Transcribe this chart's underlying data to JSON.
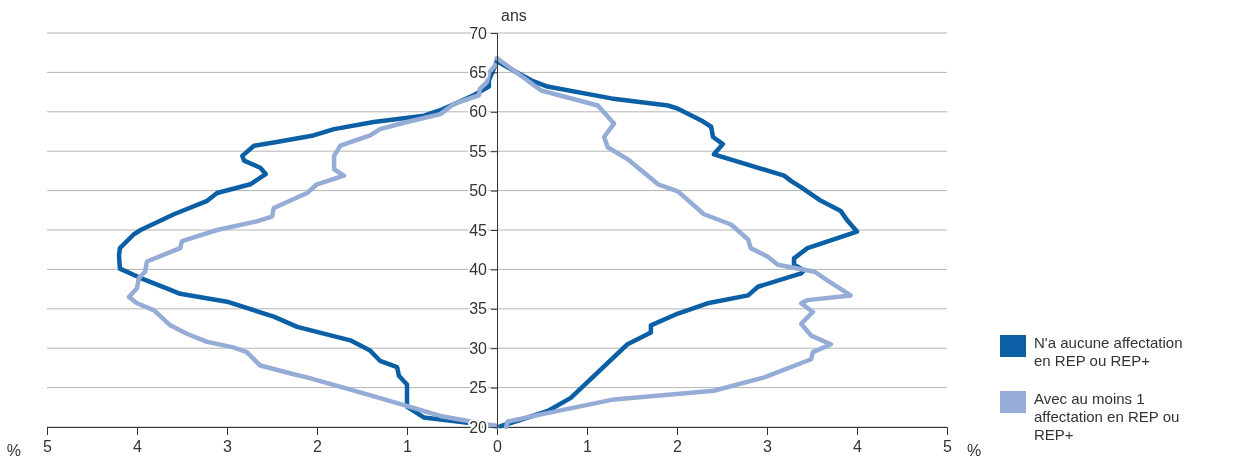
{
  "chart_data": {
    "type": "line",
    "ylabel": "ans",
    "xlabel": "%",
    "xlim": [
      -5,
      5
    ],
    "xticks": [
      {
        "value": -5,
        "label": "5"
      },
      {
        "value": -4,
        "label": "4"
      },
      {
        "value": -3,
        "label": "3"
      },
      {
        "value": -2,
        "label": "2"
      },
      {
        "value": -1,
        "label": "1"
      },
      0,
      1,
      2,
      3,
      4,
      5
    ],
    "ylim": [
      20,
      70
    ],
    "yticks": [
      20,
      25,
      30,
      35,
      40,
      45,
      50,
      55,
      60,
      65,
      70
    ],
    "grid": "y",
    "legend": "right",
    "marker": "none",
    "line_style": "solid",
    "series": [
      {
        "name": "N'a aucune affectation en REP ou REP+",
        "color": "#0b5fa5",
        "x": [
          0,
          -0.81,
          -1.0,
          -1.0,
          -1.09,
          -1.11,
          -1.3,
          -1.41,
          -1.63,
          -2.22,
          -2.48,
          -3.0,
          -3.52,
          -3.67,
          -3.96,
          -4.19,
          -4.2,
          -4.19,
          -4.04,
          -3.96,
          -3.59,
          -3.22,
          -3.11,
          -2.74,
          -2.57,
          -2.63,
          -2.81,
          -2.83,
          -2.7,
          -2.48,
          -2.04,
          -1.81,
          -1.37,
          -0.81,
          -0.63,
          -0.26,
          -0.09,
          -0.09,
          0
        ],
        "values": [
          20.1,
          21.2,
          22.6,
          25.4,
          26.5,
          27.6,
          28.4,
          29.7,
          31.0,
          32.7,
          34.0,
          35.9,
          36.9,
          37.6,
          38.9,
          40.1,
          41.8,
          42.7,
          44.4,
          45.0,
          47.0,
          48.7,
          49.7,
          50.8,
          52.1,
          52.9,
          53.8,
          54.4,
          55.7,
          56.1,
          57.0,
          57.8,
          58.7,
          59.5,
          60.2,
          62.1,
          63.2,
          64.0,
          66.4
        ]
      },
      {
        "name": "Avec au moins 1 affectation en REP ou REP+",
        "color": "#94acd6",
        "x": [
          0,
          -0.63,
          -1.07,
          -1.52,
          -2.11,
          -2.26,
          -2.63,
          -2.78,
          -2.93,
          -3.22,
          -3.44,
          -3.63,
          -3.81,
          -4.0,
          -4.09,
          -4.0,
          -3.98,
          -3.91,
          -3.89,
          -3.52,
          -3.5,
          -3.11,
          -2.67,
          -2.5,
          -2.48,
          -2.11,
          -2.0,
          -1.7,
          -1.81,
          -1.81,
          -1.74,
          -1.41,
          -1.3,
          -1.0,
          -0.63,
          -0.48,
          -0.2,
          -0.19,
          -0.11,
          -0.09,
          -0.02,
          0
        ],
        "values": [
          20.1,
          21.4,
          22.9,
          24.4,
          26.3,
          26.7,
          27.8,
          29.5,
          30.1,
          30.8,
          31.8,
          32.9,
          34.8,
          35.7,
          36.5,
          37.6,
          38.9,
          39.7,
          41.0,
          42.7,
          43.6,
          45.0,
          46.1,
          46.7,
          47.8,
          49.7,
          50.8,
          51.9,
          52.7,
          54.4,
          55.7,
          57.0,
          57.8,
          58.7,
          59.7,
          61.0,
          62.1,
          62.9,
          63.8,
          64.9,
          65.9,
          66.8
        ]
      },
      {
        "color": "#0b5fa5",
        "x": [
          0.04,
          0.56,
          0.82,
          1.45,
          1.71,
          1.71,
          2.01,
          2.34,
          2.79,
          2.9,
          3.38,
          3.41,
          3.3,
          3.3,
          3.45,
          4.0,
          3.9,
          3.82,
          3.6,
          3.38,
          3.27,
          3.19,
          2.41,
          2.51,
          2.4,
          2.38,
          2.27,
          2.01,
          1.9,
          1.27,
          0.56,
          0.38,
          0
        ],
        "values": [
          20.1,
          22.0,
          23.7,
          30.5,
          32.0,
          32.9,
          34.4,
          35.7,
          36.7,
          37.8,
          39.5,
          39.9,
          40.6,
          41.4,
          42.7,
          44.8,
          46.1,
          47.4,
          48.7,
          50.4,
          51.2,
          51.9,
          54.6,
          55.9,
          56.8,
          58.1,
          58.9,
          60.4,
          60.8,
          61.7,
          63.2,
          64.0,
          66.4
        ]
      },
      {
        "color": "#94acd6",
        "x": [
          0.1,
          0.12,
          0.49,
          1.3,
          2.41,
          2.97,
          3.49,
          3.51,
          3.71,
          3.49,
          3.38,
          3.51,
          3.38,
          3.45,
          3.93,
          3.67,
          3.53,
          3.12,
          3.01,
          2.82,
          2.79,
          2.6,
          2.3,
          2.01,
          1.79,
          1.45,
          1.23,
          1.19,
          1.3,
          1.12,
          0.49,
          0
        ],
        "values": [
          20.0,
          20.7,
          21.6,
          23.5,
          24.6,
          26.3,
          28.6,
          29.5,
          30.5,
          31.6,
          33.1,
          34.6,
          35.7,
          36.1,
          36.7,
          38.6,
          39.7,
          40.6,
          41.6,
          42.7,
          43.8,
          45.7,
          47.0,
          49.9,
          50.8,
          54.0,
          55.5,
          56.8,
          58.5,
          60.8,
          62.7,
          66.8
        ]
      }
    ]
  }
}
